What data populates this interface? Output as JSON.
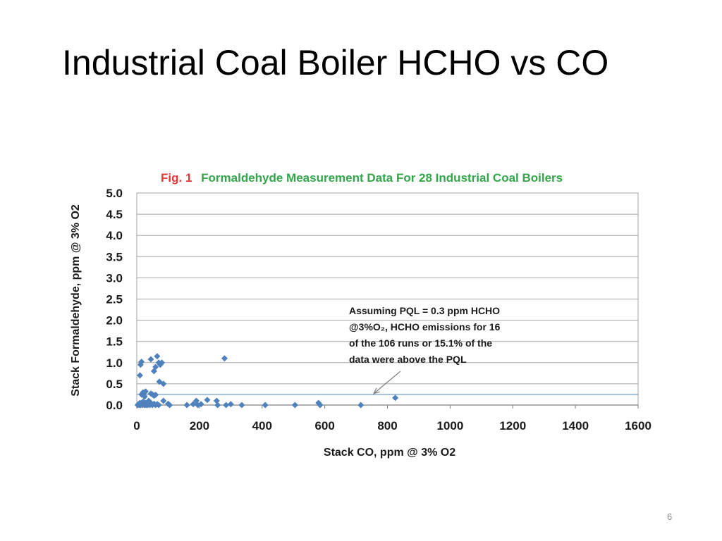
{
  "slide": {
    "title": "Industrial Coal Boiler HCHO vs CO",
    "page_number": "6"
  },
  "colors": {
    "fig_label": "#e03a3a",
    "fig_title": "#33a64a",
    "marker": "#4f81bd",
    "gridline": "#a6a6a6",
    "pql_line": "#4f81bd"
  },
  "chart_data": {
    "type": "scatter",
    "title_prefix": "Fig. 1",
    "title": "Formaldehyde Measurement Data For 28 Industrial Coal Boilers",
    "xlabel": "Stack CO, ppm @ 3% O2",
    "ylabel": "Stack Formaldehyde, ppm @ 3% O2",
    "xlim": [
      0,
      1600
    ],
    "ylim": [
      0,
      5.0
    ],
    "x_ticks": [
      "0",
      "200",
      "400",
      "600",
      "800",
      "1000",
      "1200",
      "1400",
      "1600"
    ],
    "y_ticks": [
      "0.0",
      "0.5",
      "1.0",
      "1.5",
      "2.0",
      "2.5",
      "3.0",
      "3.5",
      "4.0",
      "4.5",
      "5.0"
    ],
    "grid": "horizontal",
    "reference_line": {
      "y": 0.25
    },
    "annotation": {
      "lines": [
        "Assuming PQL = 0.3 ppm HCHO",
        "@3%O₂, HCHO emissions for 16",
        "of the 106 runs or 15.1% of the",
        "data were above the PQL"
      ],
      "arrow_to": {
        "x": 790,
        "y": 0.27
      }
    },
    "points": [
      {
        "x": 3,
        "y": 0.0
      },
      {
        "x": 5,
        "y": 0.02
      },
      {
        "x": 8,
        "y": 0.0
      },
      {
        "x": 10,
        "y": 0.05
      },
      {
        "x": 12,
        "y": 0.0
      },
      {
        "x": 15,
        "y": 0.03
      },
      {
        "x": 18,
        "y": 0.0
      },
      {
        "x": 20,
        "y": 0.08
      },
      {
        "x": 22,
        "y": 0.02
      },
      {
        "x": 25,
        "y": 0.0
      },
      {
        "x": 28,
        "y": 0.05
      },
      {
        "x": 30,
        "y": 0.0
      },
      {
        "x": 33,
        "y": 0.02
      },
      {
        "x": 35,
        "y": 0.0
      },
      {
        "x": 38,
        "y": 0.1
      },
      {
        "x": 40,
        "y": 0.03
      },
      {
        "x": 42,
        "y": 0.0
      },
      {
        "x": 45,
        "y": 0.05
      },
      {
        "x": 48,
        "y": 0.02
      },
      {
        "x": 50,
        "y": 0.0
      },
      {
        "x": 55,
        "y": 0.03
      },
      {
        "x": 60,
        "y": 0.0
      },
      {
        "x": 65,
        "y": 0.02
      },
      {
        "x": 70,
        "y": 0.0
      },
      {
        "x": 15,
        "y": 0.25
      },
      {
        "x": 20,
        "y": 0.3
      },
      {
        "x": 25,
        "y": 0.2
      },
      {
        "x": 28,
        "y": 0.32
      },
      {
        "x": 45,
        "y": 0.27
      },
      {
        "x": 50,
        "y": 0.25
      },
      {
        "x": 55,
        "y": 0.22
      },
      {
        "x": 60,
        "y": 0.24
      },
      {
        "x": 10,
        "y": 0.7
      },
      {
        "x": 12,
        "y": 0.95
      },
      {
        "x": 15,
        "y": 1.02
      },
      {
        "x": 45,
        "y": 1.08
      },
      {
        "x": 55,
        "y": 0.8
      },
      {
        "x": 60,
        "y": 0.9
      },
      {
        "x": 65,
        "y": 1.15
      },
      {
        "x": 70,
        "y": 1.0
      },
      {
        "x": 72,
        "y": 0.55
      },
      {
        "x": 75,
        "y": 0.95
      },
      {
        "x": 80,
        "y": 1.0
      },
      {
        "x": 85,
        "y": 0.5
      },
      {
        "x": 85,
        "y": 0.1
      },
      {
        "x": 100,
        "y": 0.03
      },
      {
        "x": 105,
        "y": 0.0
      },
      {
        "x": 160,
        "y": 0.0
      },
      {
        "x": 180,
        "y": 0.02
      },
      {
        "x": 190,
        "y": 0.1
      },
      {
        "x": 195,
        "y": 0.0
      },
      {
        "x": 205,
        "y": 0.02
      },
      {
        "x": 225,
        "y": 0.12
      },
      {
        "x": 255,
        "y": 0.1
      },
      {
        "x": 258,
        "y": 0.0
      },
      {
        "x": 280,
        "y": 1.1
      },
      {
        "x": 285,
        "y": 0.0
      },
      {
        "x": 300,
        "y": 0.02
      },
      {
        "x": 335,
        "y": 0.0
      },
      {
        "x": 410,
        "y": 0.0
      },
      {
        "x": 505,
        "y": 0.0
      },
      {
        "x": 580,
        "y": 0.05
      },
      {
        "x": 585,
        "y": 0.0
      },
      {
        "x": 715,
        "y": 0.0
      },
      {
        "x": 825,
        "y": 0.17
      }
    ]
  }
}
